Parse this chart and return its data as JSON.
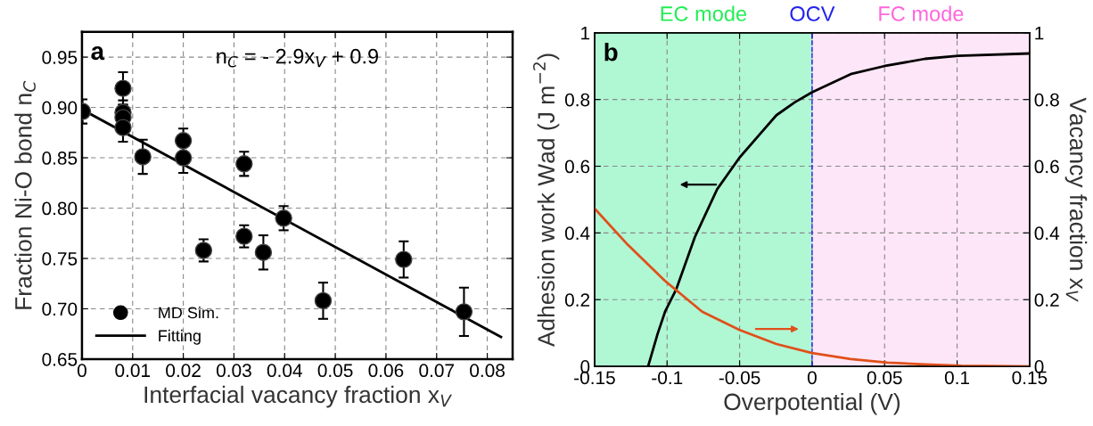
{
  "chart_data": [
    {
      "type": "scatter",
      "xlabel": "Interfacial vacancy fraction x$_{V}$",
      "ylabel": "Fraction Ni-O bond n$_{C}$",
      "annotations": [
        "a",
        "n$_{C}$ = - 2.9x$_{V}$ + 0.9"
      ],
      "xlim": [
        0,
        0.085
      ],
      "xticks": [
        {
          "value": 0,
          "label": "0"
        },
        0.01,
        0.02,
        0.03,
        0.04,
        0.05,
        0.06,
        0.07,
        0.08
      ],
      "ylim": [
        0.65,
        0.975
      ],
      "yticks": [
        {
          "value": 0.65,
          "label": "0.65"
        },
        {
          "value": 0.7,
          "label": "0.70"
        },
        0.75,
        {
          "value": 0.8,
          "label": "0.80"
        },
        0.85,
        {
          "value": 0.9,
          "label": "0.90"
        },
        0.95
      ],
      "grid": true,
      "legend": "bottom left",
      "series": [
        {
          "name": "MD Sim.",
          "type": "scatter",
          "color": "#000000",
          "marker": "circle",
          "x": [
            0.0001,
            0.0081,
            0.0081,
            0.0081,
            0.0081,
            0.012,
            0.02,
            0.02,
            0.024,
            0.032,
            0.032,
            0.0358,
            0.0398,
            0.0476,
            0.0635,
            0.0754
          ],
          "values": [
            0.896,
            0.919,
            0.895,
            0.89,
            0.88,
            0.851,
            0.867,
            0.85,
            0.758,
            0.844,
            0.772,
            0.756,
            0.79,
            0.708,
            0.749,
            0.697
          ],
          "errors": [
            0.012,
            0.016,
            0.012,
            0.012,
            0.014,
            0.017,
            0.012,
            0.015,
            0.011,
            0.012,
            0.011,
            0.017,
            0.012,
            0.018,
            0.018,
            0.024
          ]
        },
        {
          "name": "Fitting",
          "type": "line",
          "color": "#000000",
          "x": [
            0.0,
            0.0827
          ],
          "values": [
            0.898,
            0.672
          ]
        }
      ]
    },
    {
      "type": "line",
      "xlabel": "Overpotential (V)",
      "ylabel": "Adhesion work Wad (J m$^{−2}$)",
      "y2label": "Vacancy fraction x$_{V}$",
      "annotations": [
        "b"
      ],
      "xlim": [
        -0.15,
        0.15
      ],
      "xticks": [
        -0.15,
        -0.1,
        -0.05,
        0,
        0.05,
        0.1,
        0.15
      ],
      "ylim": [
        0,
        1
      ],
      "yticks": [
        0,
        0.2,
        0.4,
        0.6,
        0.8,
        1
      ],
      "y2lim": [
        0,
        1
      ],
      "y2ticks": [
        0,
        0.2,
        0.4,
        0.6,
        0.8,
        1
      ],
      "grid": true,
      "bands": [
        {
          "axis": "x",
          "from": -0.15,
          "to": 0,
          "label": "EC mode",
          "color": "#b0f7d4"
        },
        {
          "axis": "x",
          "from": 0,
          "to": 0.15,
          "label": "FC mode",
          "color": "#fde6f7"
        }
      ],
      "ref_lines": [
        {
          "axis": "x",
          "value": 0,
          "label": "OCV",
          "color": "#2222ee",
          "line_style": "dashed"
        }
      ],
      "series": [
        {
          "color": "#000000",
          "x": [
            -0.1131,
            -0.1065,
            -0.1014,
            -0.0937,
            -0.0809,
            -0.0655,
            -0.05,
            -0.0374,
            -0.0246,
            -0.0118,
            0,
            0.0266,
            0.0496,
            0.0778,
            0.1008,
            0.15
          ],
          "values": [
            0,
            0.098,
            0.164,
            0.231,
            0.387,
            0.531,
            0.626,
            0.689,
            0.753,
            0.792,
            0.822,
            0.876,
            0.9,
            0.922,
            0.931,
            0.938
          ]
        },
        {
          "color": "#e0501a",
          "axis": "y2",
          "x": [
            -0.15,
            -0.127,
            -0.1014,
            -0.0758,
            -0.05,
            -0.0246,
            0,
            0.0266,
            0.052,
            0.0778,
            0.103,
            0.15
          ],
          "values": [
            0.473,
            0.364,
            0.256,
            0.164,
            0.109,
            0.067,
            0.04,
            0.022,
            0.011,
            0.006,
            0.002,
            0.0
          ]
        }
      ]
    }
  ]
}
